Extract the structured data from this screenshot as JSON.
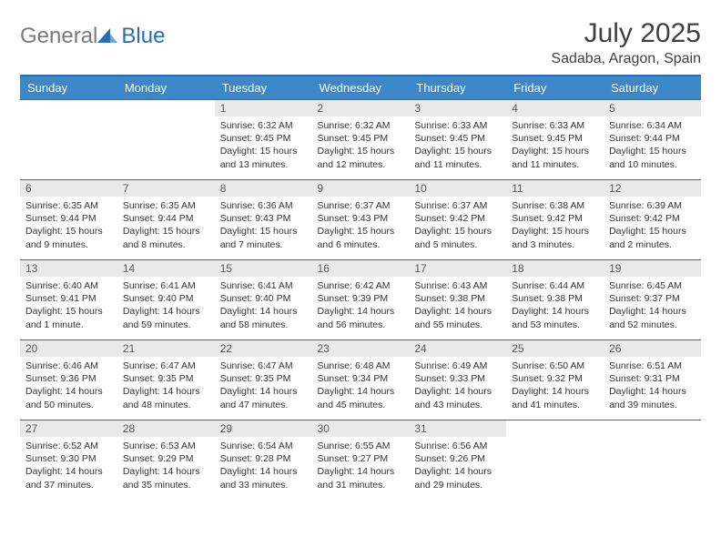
{
  "logo": {
    "part1": "General",
    "part2": "Blue"
  },
  "title": "July 2025",
  "location": "Sadaba, Aragon, Spain",
  "header_color": "#3b87c8",
  "border_color": "#2a6db0",
  "daynum_bg": "#e9e9e9",
  "weekdays": [
    "Sunday",
    "Monday",
    "Tuesday",
    "Wednesday",
    "Thursday",
    "Friday",
    "Saturday"
  ],
  "weeks": [
    [
      null,
      null,
      {
        "n": "1",
        "sr": "6:32 AM",
        "ss": "9:45 PM",
        "dl": "15 hours and 13 minutes."
      },
      {
        "n": "2",
        "sr": "6:32 AM",
        "ss": "9:45 PM",
        "dl": "15 hours and 12 minutes."
      },
      {
        "n": "3",
        "sr": "6:33 AM",
        "ss": "9:45 PM",
        "dl": "15 hours and 11 minutes."
      },
      {
        "n": "4",
        "sr": "6:33 AM",
        "ss": "9:45 PM",
        "dl": "15 hours and 11 minutes."
      },
      {
        "n": "5",
        "sr": "6:34 AM",
        "ss": "9:44 PM",
        "dl": "15 hours and 10 minutes."
      }
    ],
    [
      {
        "n": "6",
        "sr": "6:35 AM",
        "ss": "9:44 PM",
        "dl": "15 hours and 9 minutes."
      },
      {
        "n": "7",
        "sr": "6:35 AM",
        "ss": "9:44 PM",
        "dl": "15 hours and 8 minutes."
      },
      {
        "n": "8",
        "sr": "6:36 AM",
        "ss": "9:43 PM",
        "dl": "15 hours and 7 minutes."
      },
      {
        "n": "9",
        "sr": "6:37 AM",
        "ss": "9:43 PM",
        "dl": "15 hours and 6 minutes."
      },
      {
        "n": "10",
        "sr": "6:37 AM",
        "ss": "9:42 PM",
        "dl": "15 hours and 5 minutes."
      },
      {
        "n": "11",
        "sr": "6:38 AM",
        "ss": "9:42 PM",
        "dl": "15 hours and 3 minutes."
      },
      {
        "n": "12",
        "sr": "6:39 AM",
        "ss": "9:42 PM",
        "dl": "15 hours and 2 minutes."
      }
    ],
    [
      {
        "n": "13",
        "sr": "6:40 AM",
        "ss": "9:41 PM",
        "dl": "15 hours and 1 minute."
      },
      {
        "n": "14",
        "sr": "6:41 AM",
        "ss": "9:40 PM",
        "dl": "14 hours and 59 minutes."
      },
      {
        "n": "15",
        "sr": "6:41 AM",
        "ss": "9:40 PM",
        "dl": "14 hours and 58 minutes."
      },
      {
        "n": "16",
        "sr": "6:42 AM",
        "ss": "9:39 PM",
        "dl": "14 hours and 56 minutes."
      },
      {
        "n": "17",
        "sr": "6:43 AM",
        "ss": "9:38 PM",
        "dl": "14 hours and 55 minutes."
      },
      {
        "n": "18",
        "sr": "6:44 AM",
        "ss": "9:38 PM",
        "dl": "14 hours and 53 minutes."
      },
      {
        "n": "19",
        "sr": "6:45 AM",
        "ss": "9:37 PM",
        "dl": "14 hours and 52 minutes."
      }
    ],
    [
      {
        "n": "20",
        "sr": "6:46 AM",
        "ss": "9:36 PM",
        "dl": "14 hours and 50 minutes."
      },
      {
        "n": "21",
        "sr": "6:47 AM",
        "ss": "9:35 PM",
        "dl": "14 hours and 48 minutes."
      },
      {
        "n": "22",
        "sr": "6:47 AM",
        "ss": "9:35 PM",
        "dl": "14 hours and 47 minutes."
      },
      {
        "n": "23",
        "sr": "6:48 AM",
        "ss": "9:34 PM",
        "dl": "14 hours and 45 minutes."
      },
      {
        "n": "24",
        "sr": "6:49 AM",
        "ss": "9:33 PM",
        "dl": "14 hours and 43 minutes."
      },
      {
        "n": "25",
        "sr": "6:50 AM",
        "ss": "9:32 PM",
        "dl": "14 hours and 41 minutes."
      },
      {
        "n": "26",
        "sr": "6:51 AM",
        "ss": "9:31 PM",
        "dl": "14 hours and 39 minutes."
      }
    ],
    [
      {
        "n": "27",
        "sr": "6:52 AM",
        "ss": "9:30 PM",
        "dl": "14 hours and 37 minutes."
      },
      {
        "n": "28",
        "sr": "6:53 AM",
        "ss": "9:29 PM",
        "dl": "14 hours and 35 minutes."
      },
      {
        "n": "29",
        "sr": "6:54 AM",
        "ss": "9:28 PM",
        "dl": "14 hours and 33 minutes."
      },
      {
        "n": "30",
        "sr": "6:55 AM",
        "ss": "9:27 PM",
        "dl": "14 hours and 31 minutes."
      },
      {
        "n": "31",
        "sr": "6:56 AM",
        "ss": "9:26 PM",
        "dl": "14 hours and 29 minutes."
      },
      null,
      null
    ]
  ],
  "labels": {
    "sunrise": "Sunrise:",
    "sunset": "Sunset:",
    "daylight": "Daylight:"
  }
}
